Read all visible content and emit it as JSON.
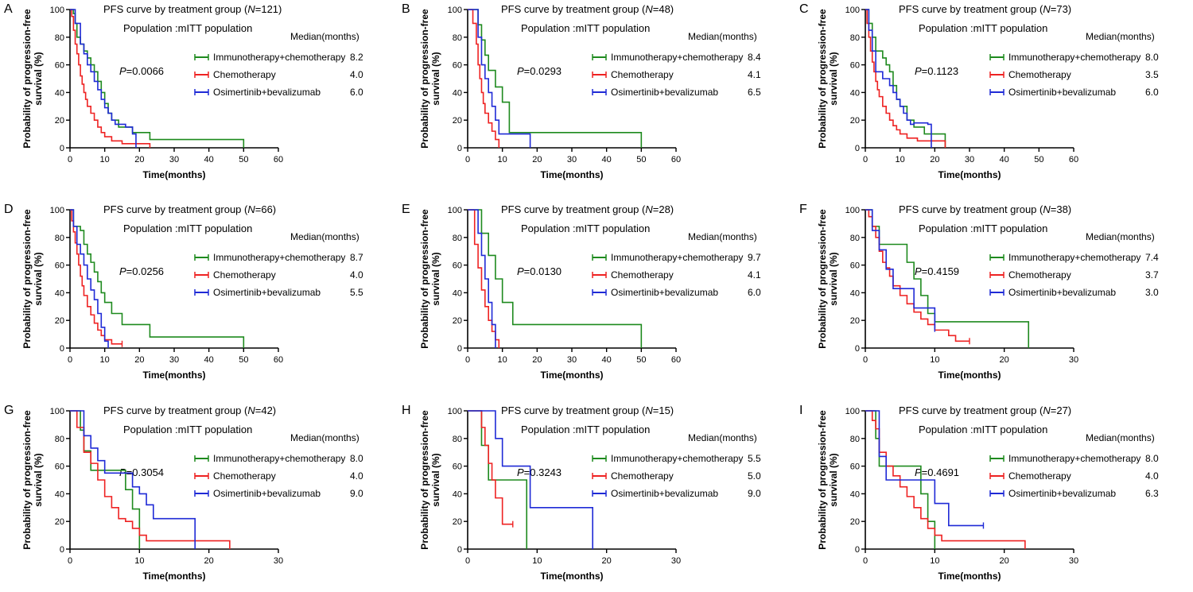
{
  "figure": {
    "population_label": "Population :mITT population",
    "median_header": "Median(months)",
    "xlabel": "Time(months)",
    "ylabel_line1": "Probability of progression-free",
    "ylabel_line2": "survival (%)",
    "title_prefix": "PFS curve by treatment group (",
    "title_italic": "N",
    "p_italic": "P",
    "colors": {
      "immuno": "#1e8a1e",
      "chemo": "#ee2222",
      "osim": "#1f2ad6",
      "axis": "#000000"
    }
  },
  "chart_data": [
    {
      "panel": "A",
      "type": "line",
      "n": "121",
      "p_value": "=0.0066",
      "xlim": [
        0,
        60
      ],
      "xticks": [
        0,
        10,
        20,
        30,
        40,
        50,
        60
      ],
      "ylim": [
        0,
        100
      ],
      "yticks": [
        0,
        20,
        40,
        60,
        80,
        100
      ],
      "series": [
        {
          "name": "Immunotherapy+chemotherapy",
          "median": "8.2",
          "color": "#1e8a1e",
          "x": [
            0,
            1,
            1.5,
            2,
            3,
            4,
            5,
            6,
            7,
            8,
            9,
            10,
            11,
            12,
            14,
            18,
            23,
            50
          ],
          "y": [
            100,
            97,
            90,
            80,
            75,
            70,
            65,
            60,
            55,
            48,
            40,
            32,
            25,
            20,
            15,
            11,
            6,
            0
          ]
        },
        {
          "name": "Chemotherapy",
          "median": "4.0",
          "color": "#ee2222",
          "x": [
            0,
            0.5,
            1,
            1.5,
            2,
            2.5,
            3,
            3.5,
            4,
            4.5,
            5,
            6,
            7,
            8,
            9,
            10,
            12,
            15,
            23
          ],
          "y": [
            100,
            95,
            85,
            75,
            68,
            60,
            52,
            46,
            40,
            35,
            30,
            25,
            20,
            15,
            11,
            8,
            5,
            3,
            0
          ]
        },
        {
          "name": "Osimertinib+bevalizumab",
          "median": "6.0",
          "color": "#1f2ad6",
          "x": [
            0,
            1.5,
            3,
            4,
            5,
            6,
            7,
            8,
            9,
            10,
            11,
            12,
            13,
            16,
            18,
            19
          ],
          "y": [
            100,
            90,
            75,
            68,
            60,
            55,
            48,
            42,
            35,
            29,
            25,
            20,
            17,
            15,
            10,
            0
          ]
        }
      ]
    },
    {
      "panel": "B",
      "type": "line",
      "n": "48",
      "p_value": "=0.0293",
      "xlim": [
        0,
        60
      ],
      "xticks": [
        0,
        10,
        20,
        30,
        40,
        50,
        60
      ],
      "ylim": [
        0,
        100
      ],
      "yticks": [
        0,
        20,
        40,
        60,
        80,
        100
      ],
      "series": [
        {
          "name": "Immunotherapy+chemotherapy",
          "median": "8.4",
          "color": "#1e8a1e",
          "x": [
            0,
            3,
            4,
            5,
            6,
            8,
            10,
            12,
            50
          ],
          "y": [
            100,
            89,
            78,
            67,
            56,
            44,
            33,
            11,
            0
          ]
        },
        {
          "name": "Chemotherapy",
          "median": "4.1",
          "color": "#ee2222",
          "x": [
            0,
            1.5,
            2.5,
            3,
            3.5,
            4,
            4.5,
            5,
            6,
            7,
            8,
            9
          ],
          "y": [
            100,
            90,
            75,
            60,
            50,
            40,
            32,
            25,
            18,
            12,
            6,
            0
          ]
        },
        {
          "name": "Osimertinib+bevalizumab",
          "median": "6.5",
          "color": "#1f2ad6",
          "x": [
            0,
            3,
            4,
            5,
            6,
            7,
            8,
            9,
            18
          ],
          "y": [
            100,
            80,
            60,
            50,
            40,
            30,
            20,
            10,
            0
          ]
        }
      ]
    },
    {
      "panel": "C",
      "type": "line",
      "n": "73",
      "p_value": "=0.1123",
      "xlim": [
        0,
        60
      ],
      "xticks": [
        0,
        10,
        20,
        30,
        40,
        50,
        60
      ],
      "ylim": [
        0,
        100
      ],
      "yticks": [
        0,
        20,
        40,
        60,
        80,
        100
      ],
      "series": [
        {
          "name": "Immunotherapy+chemotherapy",
          "median": "8.0",
          "color": "#1e8a1e",
          "x": [
            0,
            1,
            2,
            3,
            5,
            6,
            7,
            8,
            9,
            10,
            12,
            14,
            17,
            23
          ],
          "y": [
            100,
            90,
            80,
            70,
            65,
            60,
            55,
            45,
            35,
            30,
            20,
            15,
            10,
            0
          ]
        },
        {
          "name": "Chemotherapy",
          "median": "3.5",
          "color": "#ee2222",
          "x": [
            0,
            0.5,
            1,
            1.5,
            2,
            2.5,
            3,
            3.5,
            4,
            5,
            6,
            7,
            8,
            9,
            10,
            12,
            15,
            23
          ],
          "y": [
            100,
            90,
            80,
            70,
            62,
            55,
            48,
            42,
            37,
            30,
            25,
            20,
            16,
            13,
            10,
            7,
            5,
            0
          ]
        },
        {
          "name": "Osimertinib+bevalizumab",
          "median": "6.0",
          "color": "#1f2ad6",
          "x": [
            0,
            1,
            2,
            3,
            5,
            7,
            8,
            9,
            10,
            11,
            12,
            13,
            14,
            16,
            18,
            19
          ],
          "y": [
            100,
            85,
            70,
            55,
            50,
            45,
            40,
            35,
            30,
            25,
            20,
            17,
            18,
            18,
            17,
            0
          ]
        }
      ]
    },
    {
      "panel": "D",
      "type": "line",
      "n": "66",
      "p_value": "=0.0256",
      "xlim": [
        0,
        60
      ],
      "xticks": [
        0,
        10,
        20,
        30,
        40,
        50,
        60
      ],
      "ylim": [
        0,
        100
      ],
      "yticks": [
        0,
        20,
        40,
        60,
        80,
        100
      ],
      "series": [
        {
          "name": "Immunotherapy+chemotherapy",
          "median": "8.7",
          "color": "#1e8a1e",
          "x": [
            0,
            1,
            3,
            4,
            5,
            6,
            7,
            8,
            9,
            10,
            12,
            15,
            23,
            50
          ],
          "y": [
            100,
            88,
            85,
            75,
            68,
            62,
            55,
            48,
            40,
            33,
            25,
            17,
            8,
            0
          ]
        },
        {
          "name": "Chemotherapy",
          "median": "4.0",
          "color": "#ee2222",
          "x": [
            0,
            0.5,
            1,
            1.5,
            2,
            2.5,
            3,
            3.5,
            4,
            5,
            6,
            7,
            8,
            9,
            10,
            12,
            15
          ],
          "y": [
            100,
            92,
            84,
            76,
            68,
            60,
            52,
            45,
            38,
            30,
            24,
            18,
            13,
            9,
            6,
            3,
            3
          ]
        },
        {
          "name": "Osimertinib+bevalizumab",
          "median": "5.5",
          "color": "#1f2ad6",
          "x": [
            0,
            1,
            2,
            3,
            4,
            5,
            6,
            7,
            8,
            9,
            10,
            11
          ],
          "y": [
            100,
            88,
            75,
            68,
            60,
            50,
            42,
            35,
            25,
            15,
            5,
            0
          ]
        }
      ]
    },
    {
      "panel": "E",
      "type": "line",
      "n": "28",
      "p_value": "=0.0130",
      "xlim": [
        0,
        60
      ],
      "xticks": [
        0,
        10,
        20,
        30,
        40,
        50,
        60
      ],
      "ylim": [
        0,
        100
      ],
      "yticks": [
        0,
        20,
        40,
        60,
        80,
        100
      ],
      "series": [
        {
          "name": "Immunotherapy+chemotherapy",
          "median": "9.7",
          "color": "#1e8a1e",
          "x": [
            0,
            4,
            6,
            8,
            10,
            11,
            13,
            50
          ],
          "y": [
            100,
            83,
            67,
            50,
            33,
            33,
            17,
            0
          ]
        },
        {
          "name": "Chemotherapy",
          "median": "4.1",
          "color": "#ee2222",
          "x": [
            0,
            2,
            3,
            4,
            5,
            6,
            7,
            8,
            9
          ],
          "y": [
            100,
            75,
            58,
            42,
            30,
            20,
            12,
            6,
            0
          ]
        },
        {
          "name": "Osimertinib+bevalizumab",
          "median": "6.0",
          "color": "#1f2ad6",
          "x": [
            0,
            3,
            4,
            5,
            6,
            7,
            8
          ],
          "y": [
            100,
            83,
            67,
            50,
            33,
            17,
            0
          ]
        }
      ]
    },
    {
      "panel": "F",
      "type": "line",
      "n": "38",
      "p_value": "=0.4159",
      "xlim": [
        0,
        30
      ],
      "xticks": [
        0,
        10,
        20,
        30
      ],
      "ylim": [
        0,
        100
      ],
      "yticks": [
        0,
        20,
        40,
        60,
        80,
        100
      ],
      "series": [
        {
          "name": "Immunotherapy+chemotherapy",
          "median": "7.4",
          "color": "#1e8a1e",
          "x": [
            0,
            1,
            2,
            5,
            6,
            7,
            8,
            9,
            10,
            23.5
          ],
          "y": [
            100,
            88,
            75,
            75,
            62,
            50,
            38,
            25,
            19,
            0
          ]
        },
        {
          "name": "Chemotherapy",
          "median": "3.7",
          "color": "#ee2222",
          "x": [
            0,
            0.5,
            1,
            1.5,
            2,
            2.5,
            3,
            3.5,
            4,
            5,
            6,
            7,
            8,
            9,
            10,
            12,
            13,
            15
          ],
          "y": [
            100,
            95,
            88,
            80,
            70,
            62,
            58,
            52,
            45,
            38,
            32,
            26,
            21,
            17,
            13,
            9,
            5,
            5
          ]
        },
        {
          "name": "Osimertinib+bevalizumab",
          "median": "3.0",
          "color": "#1f2ad6",
          "x": [
            0,
            1,
            2,
            3,
            4,
            5,
            7,
            8,
            10
          ],
          "y": [
            100,
            85,
            71,
            57,
            43,
            43,
            29,
            29,
            14
          ]
        }
      ]
    },
    {
      "panel": "G",
      "type": "line",
      "n": "42",
      "p_value": "=0.3054",
      "xlim": [
        0,
        30
      ],
      "xticks": [
        0,
        10,
        20,
        30
      ],
      "ylim": [
        0,
        100
      ],
      "yticks": [
        0,
        20,
        40,
        60,
        80,
        100
      ],
      "series": [
        {
          "name": "Immunotherapy+chemotherapy",
          "median": "8.0",
          "color": "#1e8a1e",
          "x": [
            0,
            1.5,
            2,
            3,
            5,
            7,
            8,
            9,
            10
          ],
          "y": [
            100,
            86,
            71,
            57,
            57,
            57,
            43,
            29,
            0
          ]
        },
        {
          "name": "Chemotherapy",
          "median": "4.0",
          "color": "#ee2222",
          "x": [
            0,
            1,
            2,
            3,
            4,
            5,
            6,
            7,
            8,
            9,
            10,
            11,
            18,
            23
          ],
          "y": [
            100,
            88,
            70,
            62,
            50,
            38,
            30,
            22,
            20,
            15,
            10,
            6,
            6,
            0
          ]
        },
        {
          "name": "Osimertinib+bevalizumab",
          "median": "9.0",
          "color": "#1f2ad6",
          "x": [
            0,
            2,
            3,
            4,
            5,
            8,
            9,
            10,
            11,
            12,
            17,
            18
          ],
          "y": [
            100,
            82,
            73,
            64,
            55,
            55,
            45,
            40,
            32,
            22,
            22,
            0
          ]
        }
      ]
    },
    {
      "panel": "H",
      "type": "line",
      "n": "15",
      "p_value": "=0.3243",
      "xlim": [
        0,
        30
      ],
      "xticks": [
        0,
        10,
        20,
        30
      ],
      "ylim": [
        0,
        100
      ],
      "yticks": [
        0,
        20,
        40,
        60,
        80,
        100
      ],
      "series": [
        {
          "name": "Immunotherapy+chemotherapy",
          "median": "5.5",
          "color": "#1e8a1e",
          "x": [
            0,
            2,
            3,
            8,
            8.5
          ],
          "y": [
            100,
            75,
            50,
            50,
            0
          ]
        },
        {
          "name": "Chemotherapy",
          "median": "5.0",
          "color": "#ee2222",
          "x": [
            0,
            2,
            2.5,
            3,
            3.5,
            4,
            5,
            6.5
          ],
          "y": [
            100,
            88,
            75,
            62,
            50,
            37,
            18,
            18
          ]
        },
        {
          "name": "Osimertinib+bevalizumab",
          "median": "9.0",
          "color": "#1f2ad6",
          "x": [
            0,
            4,
            5,
            6,
            9,
            18
          ],
          "y": [
            100,
            80,
            60,
            60,
            30,
            0
          ]
        }
      ]
    },
    {
      "panel": "I",
      "type": "line",
      "n": "27",
      "p_value": "=0.4691",
      "xlim": [
        0,
        30
      ],
      "xticks": [
        0,
        10,
        20,
        30
      ],
      "ylim": [
        0,
        100
      ],
      "yticks": [
        0,
        20,
        40,
        60,
        80,
        100
      ],
      "series": [
        {
          "name": "Immunotherapy+chemotherapy",
          "median": "8.0",
          "color": "#1e8a1e",
          "x": [
            0,
            1.5,
            2,
            7,
            8,
            9,
            10
          ],
          "y": [
            100,
            80,
            60,
            60,
            40,
            20,
            0
          ]
        },
        {
          "name": "Chemotherapy",
          "median": "4.0",
          "color": "#ee2222",
          "x": [
            0,
            1,
            1.5,
            2,
            3,
            4,
            5,
            6,
            7,
            8,
            9,
            10,
            11,
            23
          ],
          "y": [
            100,
            93,
            87,
            70,
            60,
            53,
            45,
            38,
            30,
            22,
            15,
            10,
            6,
            0
          ]
        },
        {
          "name": "Osimertinib+bevalizumab",
          "median": "6.3",
          "color": "#1f2ad6",
          "x": [
            0,
            2,
            3,
            7,
            9,
            10,
            12,
            15,
            17
          ],
          "y": [
            100,
            67,
            50,
            50,
            50,
            33,
            17,
            17,
            17
          ]
        }
      ]
    }
  ]
}
